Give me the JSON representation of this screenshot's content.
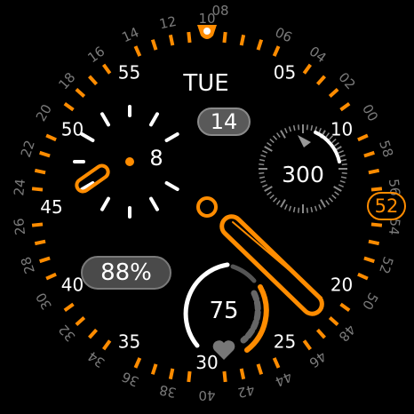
{
  "watch": {
    "day": "TUE",
    "date": "14",
    "seconds_badge": "52",
    "battery": "88%",
    "compass_value": "300",
    "heart_rate": "75",
    "subdial_hour": "8",
    "minute_labels": [
      "55",
      "05",
      "50",
      "10",
      "45",
      "40",
      "20",
      "35",
      "25",
      "30"
    ],
    "outer_hours": [
      "12",
      "10",
      "08",
      "06",
      "04",
      "02",
      "00",
      "58",
      "56",
      "54",
      "52",
      "50",
      "48",
      "46",
      "44",
      "42",
      "40",
      "38",
      "36",
      "34",
      "32",
      "30",
      "28",
      "26",
      "24",
      "22",
      "20",
      "18",
      "16",
      "14"
    ],
    "colors": {
      "accent": "#ff8c00",
      "text": "#ffffff",
      "dim": "#7a7a7a",
      "background": "#000000"
    }
  }
}
